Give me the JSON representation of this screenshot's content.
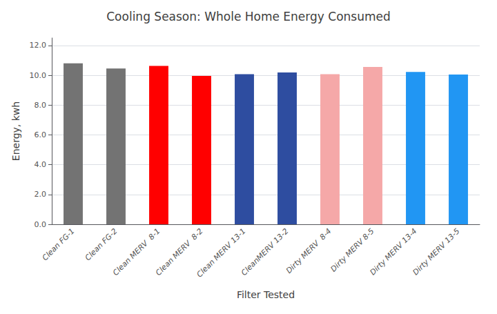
{
  "chart_data": {
    "type": "bar",
    "title": "Cooling Season: Whole Home Energy Consumed",
    "xlabel": "Filter Tested",
    "ylabel": "Energy, kwh",
    "categories": [
      "Clean FG-1",
      "Clean FG-2",
      "Clean MERV  8-1",
      "Clean MERV  8-2",
      "Clean MERV 13-1",
      "CleanMERV 13-2",
      "Dirty MERV  8-4",
      "Dirty MERV 8-5",
      "Dirty MERV 13-4",
      "Dirty MERV 13-5"
    ],
    "values": [
      10.8,
      10.45,
      10.62,
      9.95,
      10.07,
      10.18,
      10.07,
      10.55,
      10.22,
      10.05
    ],
    "colors": [
      "#737373",
      "#737373",
      "#ff0000",
      "#ff0000",
      "#2e4da0",
      "#2e4da0",
      "#f5a8a8",
      "#f5a8a8",
      "#2196f3",
      "#2196f3"
    ],
    "ylim": [
      0,
      12.5
    ],
    "yticks": [
      {
        "value": 0,
        "label": "0.0"
      },
      {
        "value": 2,
        "label": "2.0"
      },
      {
        "value": 4,
        "label": "4.0"
      },
      {
        "value": 6,
        "label": "6.0"
      },
      {
        "value": 8,
        "label": "8.0"
      },
      {
        "value": 10,
        "label": "10.0"
      },
      {
        "value": 12,
        "label": "12.0"
      }
    ],
    "grid": true
  }
}
